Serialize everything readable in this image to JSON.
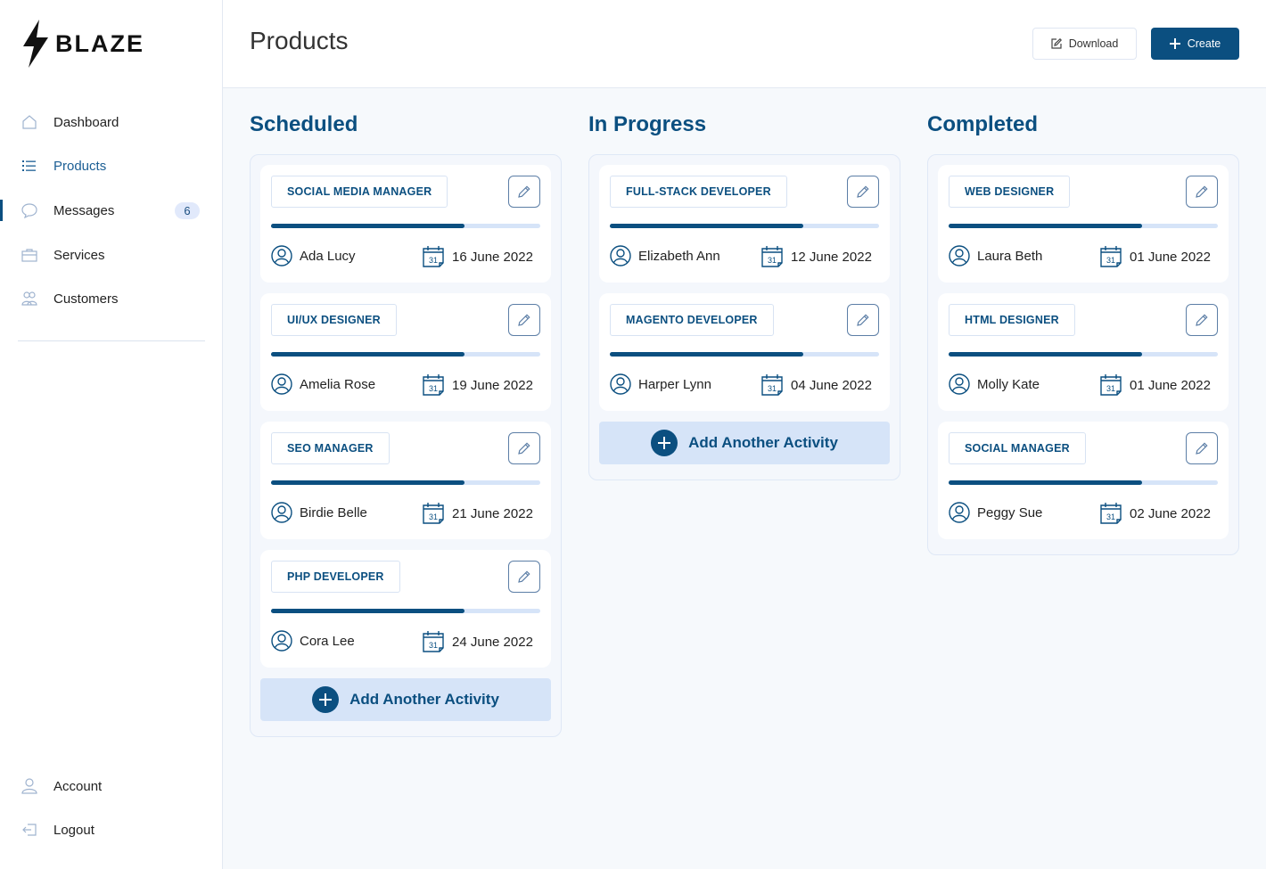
{
  "brand": {
    "name": "BLAZE"
  },
  "sidebar": {
    "items": [
      {
        "label": "Dashboard",
        "icon": "home-icon"
      },
      {
        "label": "Products",
        "icon": "list-icon"
      },
      {
        "label": "Messages",
        "icon": "chat-icon",
        "badge": "6"
      },
      {
        "label": "Services",
        "icon": "briefcase-icon"
      },
      {
        "label": "Customers",
        "icon": "users-icon"
      }
    ],
    "bottom": [
      {
        "label": "Account",
        "icon": "user-icon"
      },
      {
        "label": "Logout",
        "icon": "logout-icon"
      }
    ]
  },
  "header": {
    "title": "Products",
    "download_label": "Download",
    "create_label": "Create"
  },
  "colors": {
    "primary": "#0b4f80",
    "track": "#d6e4f8"
  },
  "columns": [
    {
      "title": "Scheduled",
      "add_label": "Add Another Activity",
      "cards": [
        {
          "tag": "SOCIAL MEDIA MANAGER",
          "person": "Ada Lucy",
          "date": "16 June 2022",
          "progress": 0.72
        },
        {
          "tag": "UI/UX DESIGNER",
          "person": "Amelia Rose",
          "date": "19 June 2022",
          "progress": 0.72
        },
        {
          "tag": "SEO MANAGER",
          "person": "Birdie Belle",
          "date": "21 June 2022",
          "progress": 0.72
        },
        {
          "tag": "PHP DEVELOPER",
          "person": "Cora Lee",
          "date": "24 June 2022",
          "progress": 0.72
        }
      ]
    },
    {
      "title": "In Progress",
      "add_label": "Add Another Activity",
      "cards": [
        {
          "tag": "FULL-STACK DEVELOPER",
          "person": "Elizabeth Ann",
          "date": "12 June 2022",
          "progress": 0.72
        },
        {
          "tag": "MAGENTO DEVELOPER",
          "person": "Harper Lynn",
          "date": "04 June 2022",
          "progress": 0.72
        }
      ]
    },
    {
      "title": "Completed",
      "cards": [
        {
          "tag": "WEB DESIGNER",
          "person": "Laura Beth",
          "date": "01 June 2022",
          "progress": 0.72
        },
        {
          "tag": "HTML DESIGNER",
          "person": "Molly Kate",
          "date": "01 June 2022",
          "progress": 0.72
        },
        {
          "tag": "SOCIAL MANAGER",
          "person": "Peggy Sue",
          "date": "02 June 2022",
          "progress": 0.72
        }
      ]
    }
  ]
}
